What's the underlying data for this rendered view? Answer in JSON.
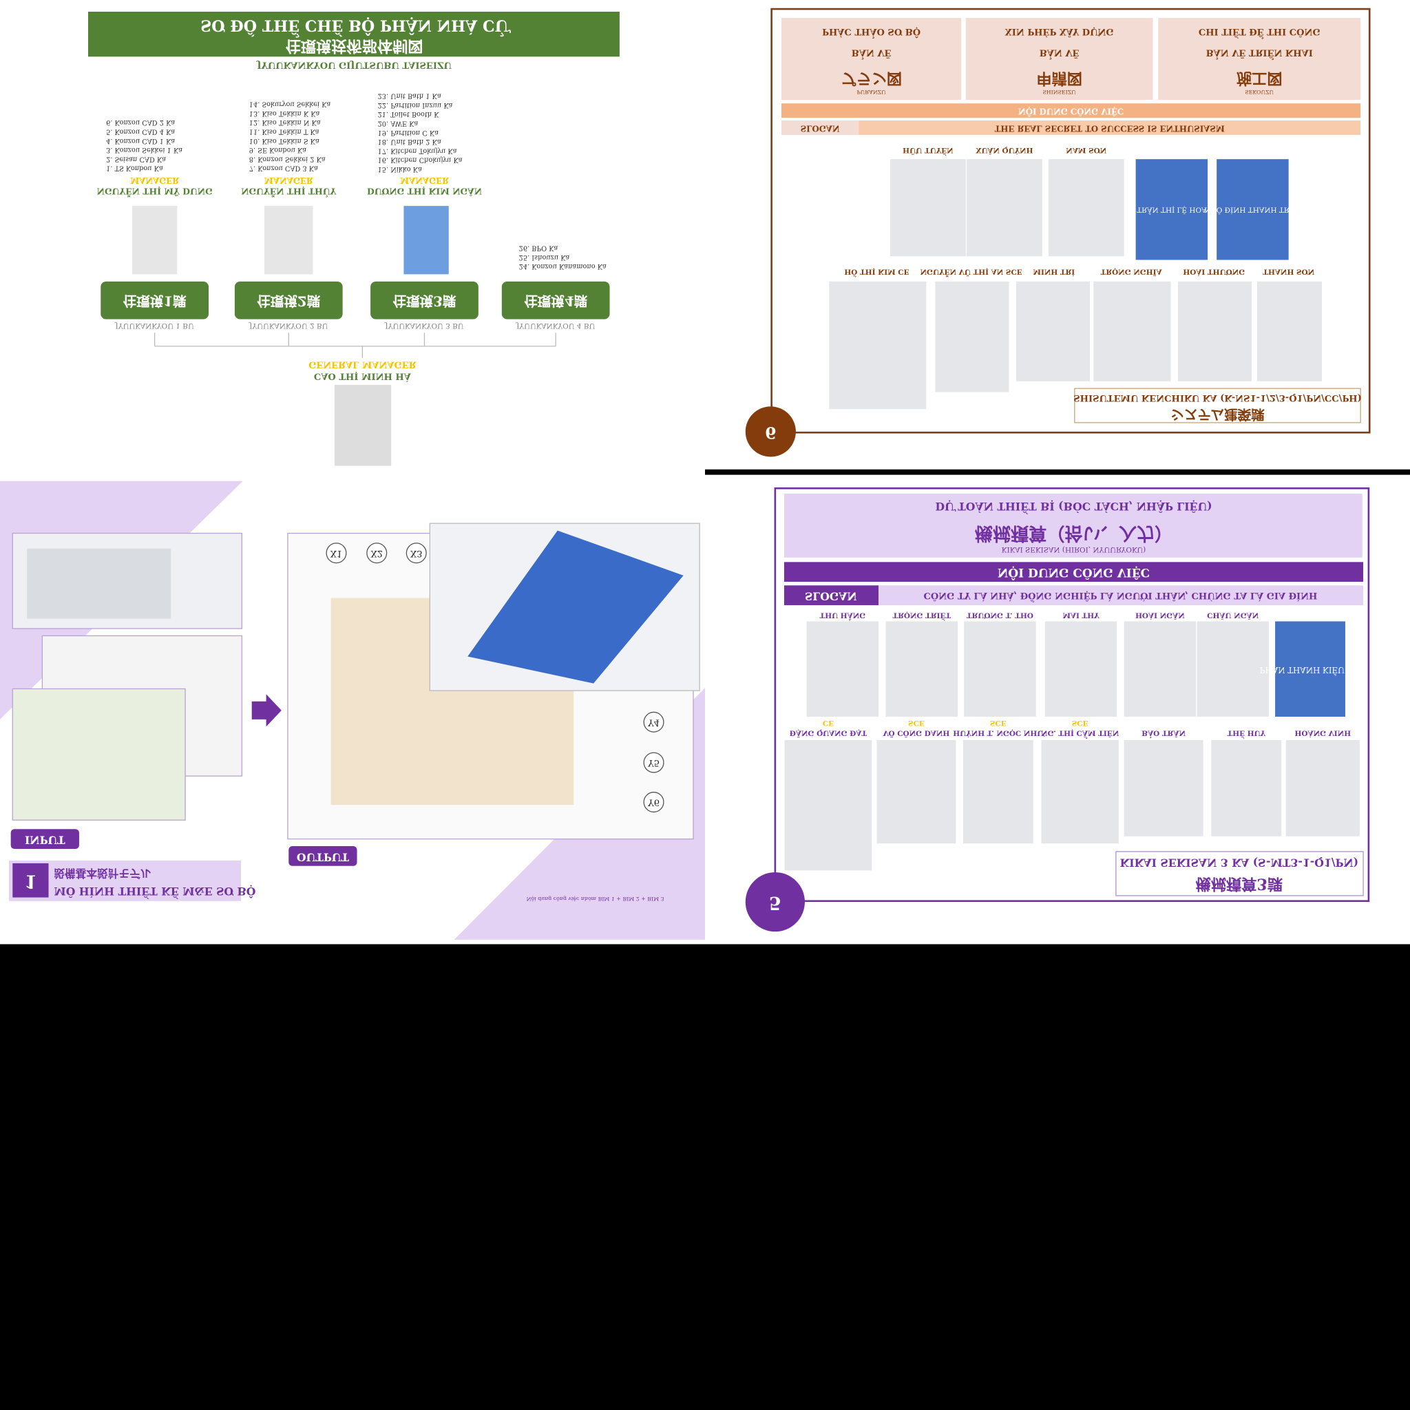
{
  "org": {
    "title": "SƠ ĐỒ THỂ CHẾ BỘ PHẬN NHÀ CỬ",
    "title_jp": "住環境技術部体制図",
    "subtitle": "JYUUKANKYOU GIJUTSUBU TAISEIZU",
    "role": "MANAGER",
    "departments": [
      {
        "box": "住環境1課",
        "label": "JYUUKANKYOU 1 BU",
        "manager": "NGUYỄN THỊ MỸ DUNG",
        "items": [
          "1. TS Konbou Ka",
          "2. Seisan CAD Ka",
          "3. Konzou Sekkei 1 Ka",
          "4. Konzou CAD 1 Ka",
          "5. Konzou CAD 4 Ka",
          "6. Konzou CAD 2 Ka"
        ]
      },
      {
        "box": "住環境2課",
        "label": "JYUUKANKYOU 2 BU",
        "manager": "NGUYỄN THỊ THỦY",
        "items": [
          "7. Konzou CAD 3 Ka",
          "8. Konzou Sekkei 2 Ka",
          "9. SE Konbou Ka",
          "10. Kiso Tekkin S Ka",
          "11. Kiso Tekkin T Ka",
          "12. Kiso Tekkin N Ka",
          "13. Kiso Tekkin K Ka",
          "14. Sokuryou Sekkei Ka"
        ]
      },
      {
        "box": "住環境3課",
        "label": "JYUUKANKYOU 3 BU",
        "manager": "DƯƠNG THỊ KIM NGÂN",
        "items": [
          "15. Nikko Ka",
          "16. Kitchen Chokujyu Ka",
          "17. Kitchen Tokujyu Ka",
          "18. Unit Bath 2 Ka",
          "19. Partition C Ka",
          "20. AWE Ka",
          "21. Toilet Booth K",
          "22. Partition Inzuu Ka",
          "23. Unit Bath 1 Ka"
        ]
      },
      {
        "box": "住環境4課",
        "label": "JYUUKANKYOU 4 BU",
        "items": [
          "24. Konzou Kanamono Ka",
          "25. Ishouzu Ka",
          "26. BPO Ka"
        ]
      }
    ],
    "gm_role": "GENERAL MANAGER",
    "gm_name": "CAO THỊ MINH HÀ"
  },
  "system": {
    "phases": [
      {
        "title": "PHÁC THẢO SƠ BỘ",
        "sub": "BẢN VẼ",
        "jp": "プラン図",
        "romaji": "PURANZU"
      },
      {
        "title": "XIN PHÉP XÂY DỰNG",
        "sub": "BẢN VẼ",
        "jp": "申請図",
        "romaji": "SHINSEIZU"
      },
      {
        "title": "CHI TIẾT ĐỂ THI CÔNG",
        "sub": "BẢN VẼ TRIỂN KHAI",
        "jp": "施工図",
        "romaji": "SEKOUZU"
      }
    ],
    "work": "NỘI DUNG CÔNG VIỆC",
    "slogan_label": "SLOGAN",
    "slogan": "THE REAL SECRET TO SUCCESS IS ENTHUSIASM",
    "row1": [
      "HỮU TUYẾN",
      "XUÂN QUỲNH",
      "NAM SƠN"
    ],
    "row1_boxes": [
      "TRẦN THỊ LỆ HOA",
      "NGÔ ĐÌNH THANH TRÚC"
    ],
    "row2": [
      "HỒ THỊ KIM CE",
      "NGUYỄN VŨ THỊ AN SCE",
      "MINH TRÍ",
      "TRỌNG NGHĨA",
      "HOÀI THƯƠNG",
      "THANH SƠN"
    ],
    "team": "SHISUTEMU KENCHIKU KA (K-NS1-1/2/3-Q1/PN/CC/PH)",
    "team_jp": "システム建築課",
    "number": "6"
  },
  "bim": {
    "input": "INPUT",
    "output": "OUTPUT",
    "number": "1",
    "title": "MÔ HÌNH THIẾT KẾ M&E SƠ BỘ",
    "title_jp": "設備基本設計モデル",
    "caption": "Nội dung công việc nhóm BIM 1 + BIM 2 + BIM 3",
    "grid": [
      "X1",
      "X2",
      "X3",
      "Y4",
      "Y5",
      "Y6"
    ]
  },
  "kikai": {
    "header": "DỰ TOÁN THIẾT BỊ (BÓC TÁCH, NHẬP LIỆU)",
    "header_jp": "機械積算（拾い、入力）",
    "header_romaji": "KIKAI SEKISAN (HIROI, NYUURYOKU)",
    "work": "NỘI DUNG CÔNG VIỆC",
    "slogan_label": "SLOGAN",
    "slogan": "CÔNG TY LÀ NHÀ, ĐỒNG NGHIỆP LÀ NGƯỜI THÂN, CHÚNG TA LÀ GIA ĐÌNH",
    "row1": [
      "THU HẰNG",
      "TRỌNG TRIẾT",
      "TRƯƠNG T. THO",
      "MAI THY",
      "HOÀI NGÂN",
      "CHÂU NGÂN"
    ],
    "row1_box": "PHAN THANH KIỀU MY",
    "row2": [
      {
        "name": "ĐẶNG QUANG ĐẠT",
        "role": "CE"
      },
      {
        "name": "VÕ CÔNG DANH",
        "role": "SCE"
      },
      {
        "name": "HUỲNH T. NGỌC NHƯ",
        "role": "SCE"
      },
      {
        "name": "NG. THỊ CẨM TIÊN",
        "role": "SCE"
      },
      {
        "name": "BẢO TRÂN"
      },
      {
        "name": "THẾ HUY"
      },
      {
        "name": "HOÀNG VINH"
      }
    ],
    "team": "KIKAI SEKISAN 3 KA (S-MT3-1-Q1/PN)",
    "team_jp": "機械積算3課",
    "number": "5"
  }
}
